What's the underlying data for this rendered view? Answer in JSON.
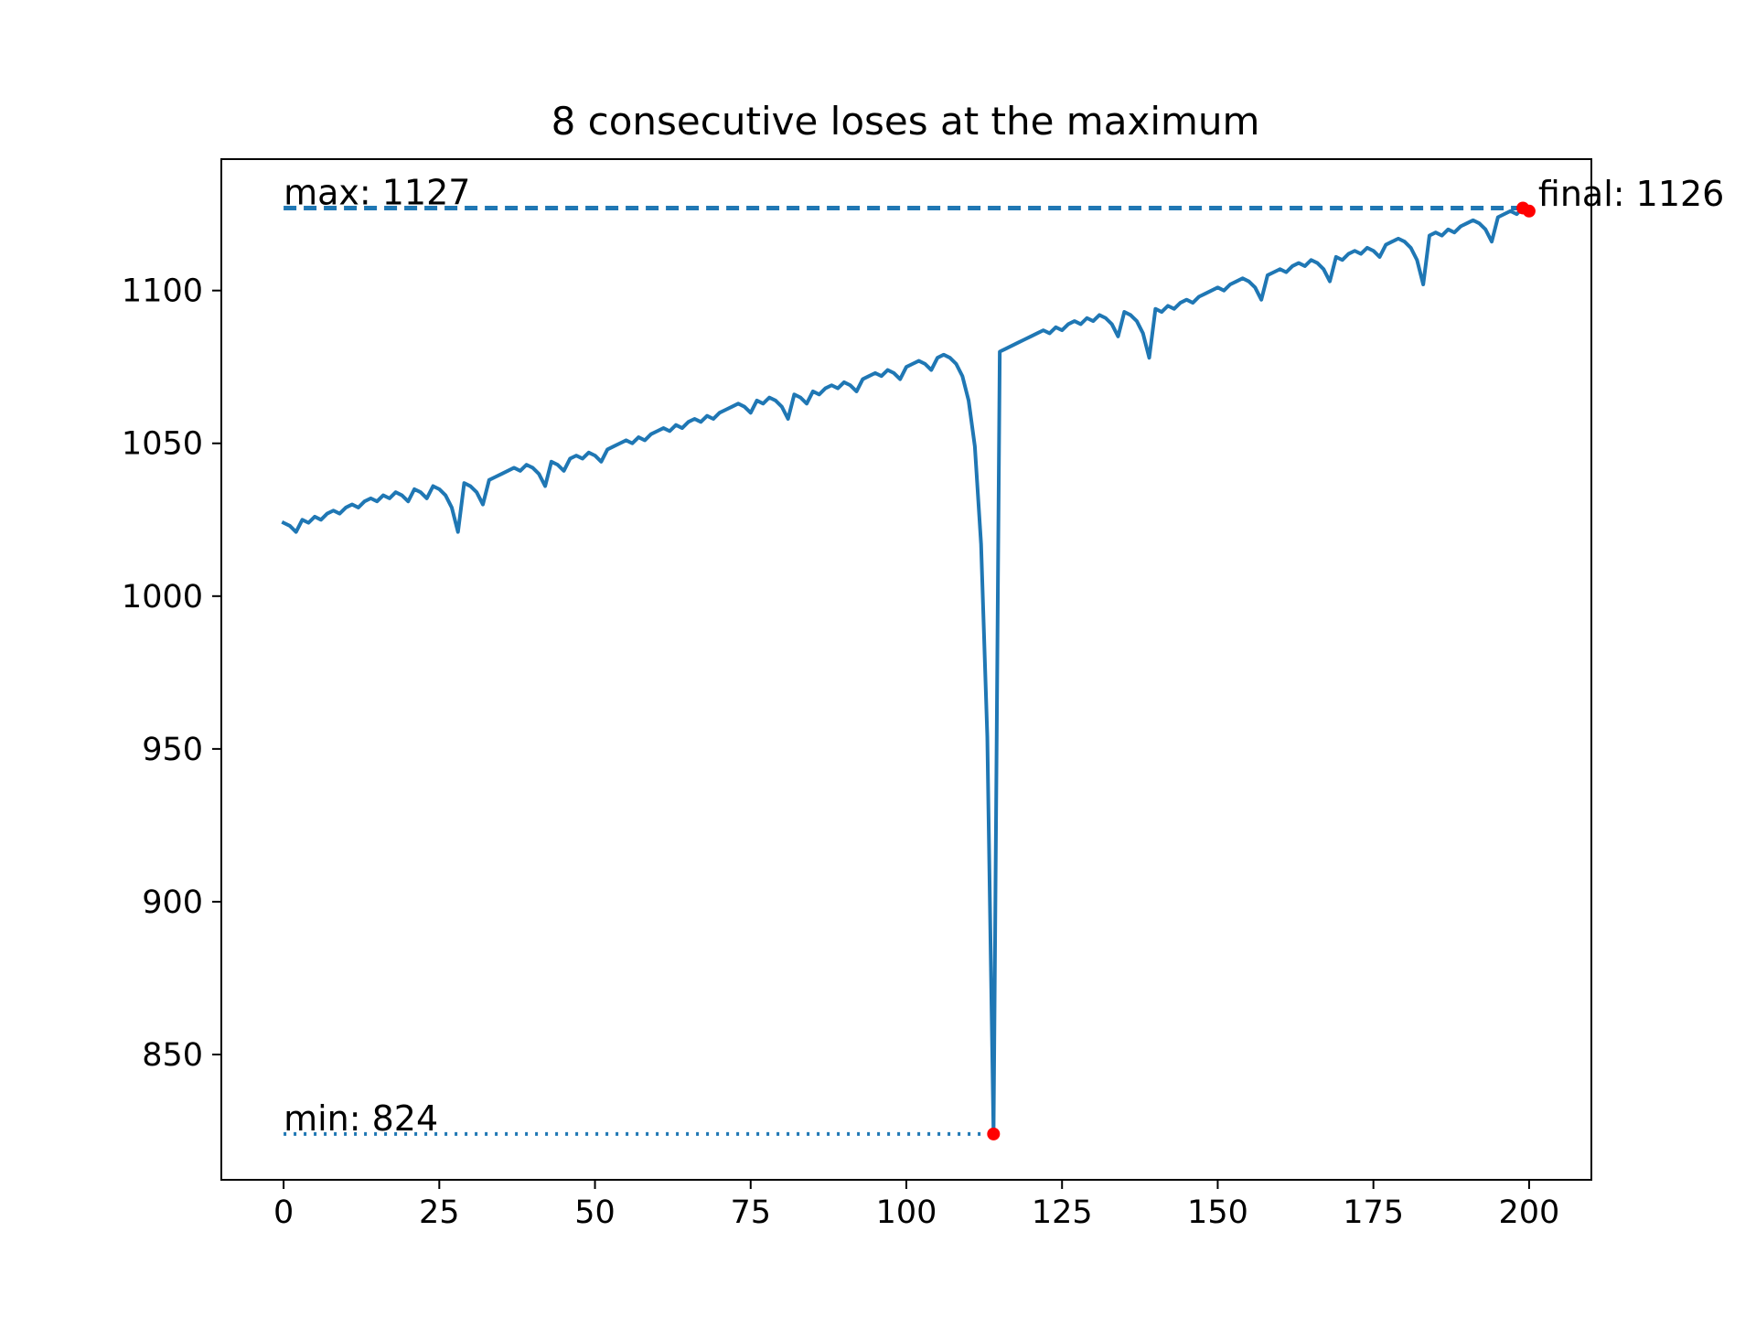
{
  "chart_data": {
    "type": "line",
    "title": "8 consecutive loses at the maximum",
    "xlabel": "",
    "ylabel": "",
    "xlim": [
      -10,
      210
    ],
    "ylim": [
      809,
      1143
    ],
    "xticks": [
      0,
      25,
      50,
      75,
      100,
      125,
      150,
      175,
      200
    ],
    "yticks": [
      850,
      900,
      950,
      1000,
      1050,
      1100
    ],
    "grid": false,
    "series": [
      {
        "color": "#1f77b4",
        "x": [
          0,
          1,
          2,
          3,
          4,
          5,
          6,
          7,
          8,
          9,
          10,
          11,
          12,
          13,
          14,
          15,
          16,
          17,
          18,
          19,
          20,
          21,
          22,
          23,
          24,
          25,
          26,
          27,
          28,
          29,
          30,
          31,
          32,
          33,
          34,
          35,
          36,
          37,
          38,
          39,
          40,
          41,
          42,
          43,
          44,
          45,
          46,
          47,
          48,
          49,
          50,
          51,
          52,
          53,
          54,
          55,
          56,
          57,
          58,
          59,
          60,
          61,
          62,
          63,
          64,
          65,
          66,
          67,
          68,
          69,
          70,
          71,
          72,
          73,
          74,
          75,
          76,
          77,
          78,
          79,
          80,
          81,
          82,
          83,
          84,
          85,
          86,
          87,
          88,
          89,
          90,
          91,
          92,
          93,
          94,
          95,
          96,
          97,
          98,
          99,
          100,
          101,
          102,
          103,
          104,
          105,
          106,
          107,
          108,
          109,
          110,
          111,
          112,
          113,
          114,
          115,
          116,
          117,
          118,
          119,
          120,
          121,
          122,
          123,
          124,
          125,
          126,
          127,
          128,
          129,
          130,
          131,
          132,
          133,
          134,
          135,
          136,
          137,
          138,
          139,
          140,
          141,
          142,
          143,
          144,
          145,
          146,
          147,
          148,
          149,
          150,
          151,
          152,
          153,
          154,
          155,
          156,
          157,
          158,
          159,
          160,
          161,
          162,
          163,
          164,
          165,
          166,
          167,
          168,
          169,
          170,
          171,
          172,
          173,
          174,
          175,
          176,
          177,
          178,
          179,
          180,
          181,
          182,
          183,
          184,
          185,
          186,
          187,
          188,
          189,
          190,
          191,
          192,
          193,
          194,
          195,
          196,
          197,
          198,
          199,
          200
        ],
        "y": [
          1024,
          1023,
          1021,
          1025,
          1024,
          1026,
          1025,
          1027,
          1028,
          1027,
          1029,
          1030,
          1029,
          1031,
          1032,
          1031,
          1033,
          1032,
          1034,
          1033,
          1031,
          1035,
          1034,
          1032,
          1036,
          1035,
          1033,
          1029,
          1021,
          1037,
          1036,
          1034,
          1030,
          1038,
          1039,
          1040,
          1041,
          1042,
          1041,
          1043,
          1042,
          1040,
          1036,
          1044,
          1043,
          1041,
          1045,
          1046,
          1045,
          1047,
          1046,
          1044,
          1048,
          1049,
          1050,
          1051,
          1050,
          1052,
          1051,
          1053,
          1054,
          1055,
          1054,
          1056,
          1055,
          1057,
          1058,
          1057,
          1059,
          1058,
          1060,
          1061,
          1062,
          1063,
          1062,
          1060,
          1064,
          1063,
          1065,
          1064,
          1062,
          1058,
          1066,
          1065,
          1063,
          1067,
          1066,
          1068,
          1069,
          1068,
          1070,
          1069,
          1067,
          1071,
          1072,
          1073,
          1072,
          1074,
          1073,
          1071,
          1075,
          1076,
          1077,
          1076,
          1074,
          1078,
          1079,
          1078,
          1076,
          1072,
          1064,
          1049,
          1017,
          954,
          824,
          1080,
          1081,
          1082,
          1083,
          1084,
          1085,
          1086,
          1087,
          1086,
          1088,
          1087,
          1089,
          1090,
          1089,
          1091,
          1090,
          1092,
          1091,
          1089,
          1085,
          1093,
          1092,
          1090,
          1086,
          1078,
          1094,
          1093,
          1095,
          1094,
          1096,
          1097,
          1096,
          1098,
          1099,
          1100,
          1101,
          1100,
          1102,
          1103,
          1104,
          1103,
          1101,
          1097,
          1105,
          1106,
          1107,
          1106,
          1108,
          1109,
          1108,
          1110,
          1109,
          1107,
          1103,
          1111,
          1110,
          1112,
          1113,
          1112,
          1114,
          1113,
          1111,
          1115,
          1116,
          1117,
          1116,
          1114,
          1110,
          1102,
          1118,
          1119,
          1118,
          1120,
          1119,
          1121,
          1122,
          1123,
          1122,
          1120,
          1116,
          1124,
          1125,
          1126,
          1125,
          1127,
          1126
        ]
      }
    ],
    "reference_lines": [
      {
        "label": "max: 1127",
        "y": 1127,
        "x_start": 0,
        "x_end": 200,
        "style": "dashed",
        "color": "#1f77b4"
      },
      {
        "label": "min: 824",
        "y": 824,
        "x_start": 0,
        "x_end": 114,
        "style": "dotted",
        "color": "#1f77b4"
      }
    ],
    "markers": [
      {
        "x": 114,
        "y": 824,
        "color": "#ff0000"
      },
      {
        "x": 199,
        "y": 1127,
        "color": "#ff0000"
      },
      {
        "x": 200,
        "y": 1126,
        "color": "#ff0000"
      }
    ],
    "annotations": [
      {
        "text": "max: 1127",
        "x": 0,
        "y": 1127
      },
      {
        "text": "min: 824",
        "x": 0,
        "y": 824
      },
      {
        "text": "final: 1126",
        "x": 200,
        "y": 1126
      }
    ]
  }
}
